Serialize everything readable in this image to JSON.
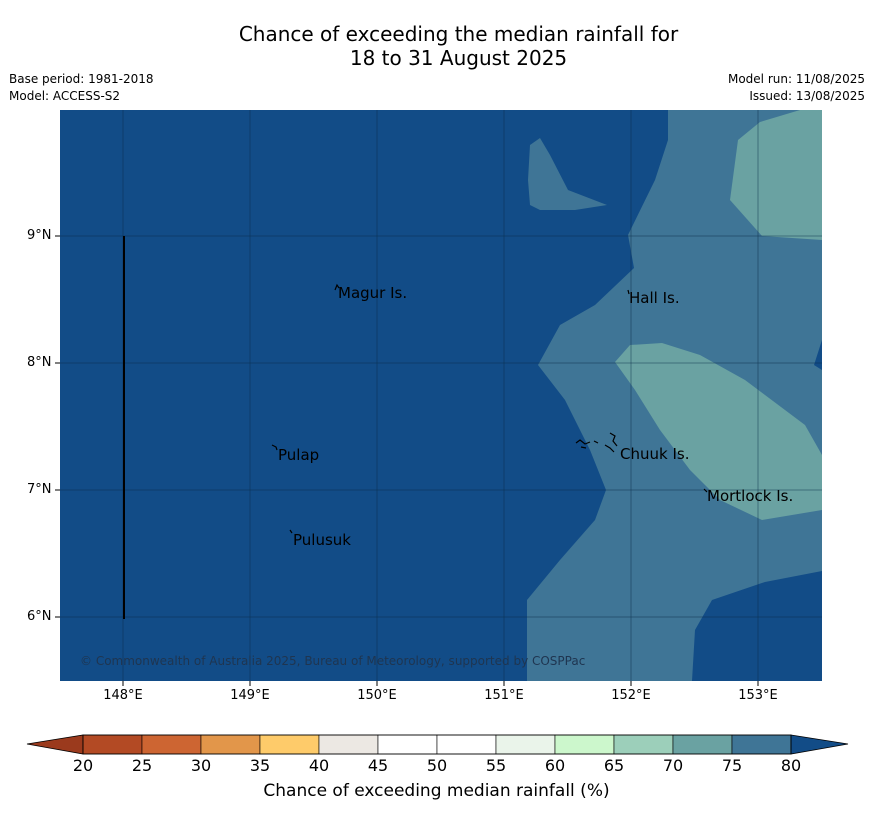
{
  "title_line1": "Chance of exceeding the median rainfall for",
  "title_line2": "18 to 31 August 2025",
  "base_period": "Base period: 1981-2018",
  "model": "Model: ACCESS-S2",
  "model_run": "Model run: 11/08/2025",
  "issued": "Issued: 13/08/2025",
  "lat_labels": [
    "9°N",
    "8°N",
    "7°N",
    "6°N"
  ],
  "lon_labels": [
    "148°E",
    "149°E",
    "150°E",
    "151°E",
    "152°E",
    "153°E"
  ],
  "places": {
    "magur": "Magur Is.",
    "hall": "Hall Is.",
    "pulap": "Pulap",
    "chuuk": "Chuuk Is.",
    "mortlock": "Mortlock Is.",
    "pulusuk": "Pulusuk"
  },
  "copyright": "© Commonwealth of Australia 2025, Bureau of Meteorology, supported by COSPPac",
  "colorbar": {
    "label": "Chance of exceeding median rainfall (%)",
    "ticks": [
      "20",
      "25",
      "30",
      "35",
      "40",
      "45",
      "50",
      "55",
      "60",
      "65",
      "70",
      "75",
      "80"
    ],
    "colors": [
      "#9b3a1d",
      "#b34a24",
      "#cd6532",
      "#e2964a",
      "#fecb6a",
      "#ece8e3",
      "#ffffff",
      "#ffffff",
      "#eaf4ea",
      "#ccf7cc",
      "#9ccfba",
      "#6aa2a2",
      "#3f7596",
      "#124c87"
    ]
  },
  "map_colors": {
    "dark_blue": "#124c87",
    "mid_blue": "#3f7596",
    "teal": "#6aa2a2"
  }
}
